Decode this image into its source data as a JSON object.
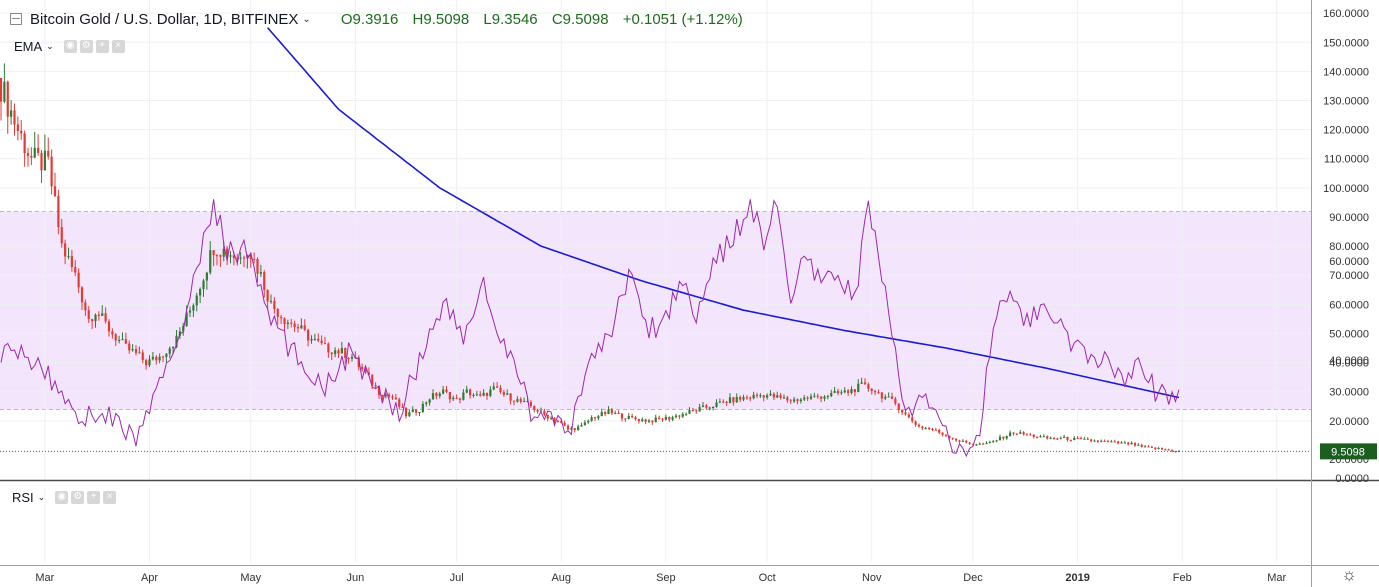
{
  "header": {
    "title": "Bitcoin Gold / U.S. Dollar, 1D, BITFINEX",
    "open": "O9.3916",
    "high": "H9.5098",
    "low": "L9.3546",
    "close": "C9.5098",
    "change": "+0.1051 (+1.12%)"
  },
  "indicators": {
    "ema_label": "EMA",
    "rsi_label": "RSI"
  },
  "price_tag": "9.5098",
  "colors": {
    "up": "#2e7d32",
    "down": "#e53935",
    "ema": "#1a1ad6",
    "rsi_line": "#9c27b0",
    "rsi_band": "#f3e5fb",
    "grid": "#eef0f3",
    "price_tag_bg": "#1b5e20",
    "ohlc_text": "#1e6b1e"
  },
  "icons": [
    "collapse-icon",
    "chevron-down-icon",
    "eye-icon",
    "settings-icon",
    "add-icon",
    "close-icon",
    "gear-icon"
  ],
  "chart_data": {
    "type": "candlestick",
    "price_axis": {
      "ticks": [
        "160.0000",
        "150.0000",
        "140.0000",
        "130.0000",
        "120.0000",
        "110.0000",
        "100.0000",
        "90.0000",
        "80.0000",
        "70.0000",
        "60.0000",
        "50.0000",
        "40.0000",
        "30.0000",
        "20.0000"
      ],
      "range": [
        9.5,
        160
      ]
    },
    "rsi_axis": {
      "ticks": [
        "60.0000",
        "40.0000",
        "20.0000",
        "0.0000"
      ],
      "band": [
        30,
        70
      ],
      "range": [
        0,
        75
      ]
    },
    "x_labels": [
      "Mar",
      "Apr",
      "May",
      "Jun",
      "Jul",
      "Aug",
      "Sep",
      "Oct",
      "Nov",
      "Dec",
      "2019",
      "Feb",
      "Mar"
    ],
    "x_label_days": [
      13,
      44,
      74,
      105,
      135,
      166,
      197,
      227,
      258,
      288,
      319,
      350,
      378
    ],
    "close_anchors": [
      [
        0,
        135
      ],
      [
        5,
        120
      ],
      [
        9,
        110
      ],
      [
        14,
        108
      ],
      [
        18,
        80
      ],
      [
        22,
        70
      ],
      [
        26,
        55
      ],
      [
        28,
        58
      ],
      [
        33,
        50
      ],
      [
        37,
        45
      ],
      [
        40,
        43
      ],
      [
        43,
        40
      ],
      [
        47,
        42
      ],
      [
        52,
        48
      ],
      [
        56,
        58
      ],
      [
        60,
        70
      ],
      [
        63,
        80
      ],
      [
        67,
        78
      ],
      [
        71,
        76
      ],
      [
        73,
        80
      ],
      [
        77,
        70
      ],
      [
        80,
        60
      ],
      [
        84,
        55
      ],
      [
        88,
        52
      ],
      [
        92,
        48
      ],
      [
        96,
        45
      ],
      [
        100,
        44
      ],
      [
        104,
        42
      ],
      [
        108,
        36
      ],
      [
        112,
        30
      ],
      [
        116,
        28
      ],
      [
        120,
        22
      ],
      [
        124,
        24
      ],
      [
        127,
        28
      ],
      [
        131,
        30
      ],
      [
        135,
        27
      ],
      [
        138,
        30
      ],
      [
        142,
        28
      ],
      [
        146,
        31
      ],
      [
        149,
        29
      ],
      [
        153,
        27
      ],
      [
        157,
        25
      ],
      [
        161,
        22
      ],
      [
        165,
        20
      ],
      [
        168,
        17
      ],
      [
        172,
        18
      ],
      [
        175,
        21
      ],
      [
        180,
        23
      ],
      [
        186,
        21
      ],
      [
        192,
        20
      ],
      [
        198,
        21
      ],
      [
        204,
        23
      ],
      [
        210,
        25
      ],
      [
        216,
        27
      ],
      [
        221,
        28
      ],
      [
        226,
        29
      ],
      [
        230,
        28
      ],
      [
        234,
        27
      ],
      [
        240,
        28
      ],
      [
        246,
        29
      ],
      [
        251,
        30
      ],
      [
        255,
        32
      ],
      [
        258,
        31
      ],
      [
        262,
        28
      ],
      [
        265,
        26
      ],
      [
        268,
        22
      ],
      [
        272,
        18
      ],
      [
        276,
        17
      ],
      [
        280,
        15
      ],
      [
        284,
        13
      ],
      [
        288,
        12
      ],
      [
        292,
        12
      ],
      [
        296,
        14
      ],
      [
        300,
        16
      ],
      [
        305,
        15
      ],
      [
        310,
        14
      ],
      [
        315,
        14
      ],
      [
        320,
        13.5
      ],
      [
        325,
        13
      ],
      [
        330,
        12.5
      ],
      [
        335,
        12
      ],
      [
        338,
        11
      ],
      [
        342,
        10.5
      ],
      [
        346,
        10
      ],
      [
        349,
        9.5
      ]
    ],
    "ema_anchors": [
      [
        79,
        155
      ],
      [
        100,
        127
      ],
      [
        130,
        100
      ],
      [
        160,
        80
      ],
      [
        190,
        68
      ],
      [
        220,
        58
      ],
      [
        250,
        51
      ],
      [
        280,
        45
      ],
      [
        310,
        38
      ],
      [
        349,
        28
      ]
    ],
    "rsi_anchors": [
      [
        0,
        42
      ],
      [
        10,
        40
      ],
      [
        17,
        34
      ],
      [
        25,
        28
      ],
      [
        30,
        30
      ],
      [
        40,
        24
      ],
      [
        48,
        36
      ],
      [
        56,
        52
      ],
      [
        63,
        72
      ],
      [
        67,
        62
      ],
      [
        73,
        62
      ],
      [
        80,
        48
      ],
      [
        88,
        40
      ],
      [
        96,
        35
      ],
      [
        104,
        42
      ],
      [
        110,
        34
      ],
      [
        118,
        30
      ],
      [
        124,
        40
      ],
      [
        131,
        52
      ],
      [
        137,
        44
      ],
      [
        143,
        56
      ],
      [
        147,
        44
      ],
      [
        153,
        38
      ],
      [
        157,
        30
      ],
      [
        163,
        28
      ],
      [
        168,
        24
      ],
      [
        174,
        40
      ],
      [
        180,
        44
      ],
      [
        186,
        58
      ],
      [
        192,
        46
      ],
      [
        196,
        48
      ],
      [
        202,
        56
      ],
      [
        206,
        50
      ],
      [
        212,
        60
      ],
      [
        218,
        66
      ],
      [
        222,
        72
      ],
      [
        226,
        64
      ],
      [
        230,
        72
      ],
      [
        234,
        52
      ],
      [
        238,
        60
      ],
      [
        243,
        55
      ],
      [
        248,
        58
      ],
      [
        253,
        52
      ],
      [
        257,
        72
      ],
      [
        261,
        56
      ],
      [
        265,
        44
      ],
      [
        268,
        28
      ],
      [
        274,
        32
      ],
      [
        280,
        26
      ],
      [
        285,
        20
      ],
      [
        290,
        26
      ],
      [
        294,
        46
      ],
      [
        298,
        54
      ],
      [
        304,
        48
      ],
      [
        310,
        50
      ],
      [
        316,
        44
      ],
      [
        322,
        40
      ],
      [
        328,
        40
      ],
      [
        334,
        36
      ],
      [
        338,
        40
      ],
      [
        342,
        34
      ],
      [
        346,
        32
      ],
      [
        349,
        34
      ]
    ]
  }
}
